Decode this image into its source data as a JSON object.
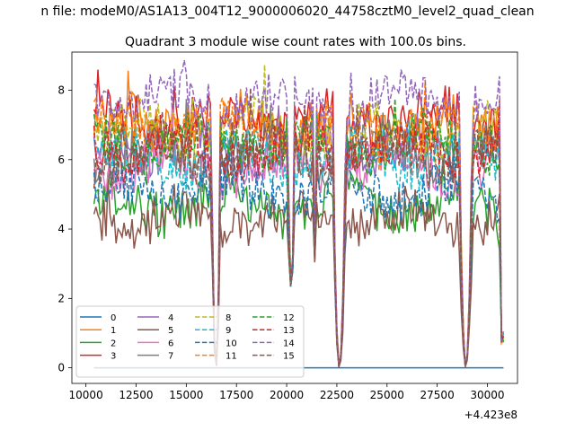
{
  "chart_data": {
    "type": "line",
    "suptitle": "n file: modeM0/AS1A13_004T12_9000006020_44758cztM0_level2_quad_clean",
    "title": "Quadrant 3 module wise count rates with 100.0s bins.",
    "xlabel": "",
    "ylabel": "",
    "offset_label": "+4.423e8",
    "xlim": [
      9300,
      31500
    ],
    "ylim": [
      -0.45,
      9.1
    ],
    "xticks": [
      10000,
      12500,
      15000,
      17500,
      20000,
      22500,
      25000,
      27500,
      30000
    ],
    "xtick_labels": [
      "10000",
      "12500",
      "15000",
      "17500",
      "20000",
      "22500",
      "25000",
      "27500",
      "30000"
    ],
    "yticks": [
      0,
      2,
      4,
      6,
      8
    ],
    "ytick_labels": [
      "0",
      "2",
      "4",
      "6",
      "8"
    ],
    "x_range": [
      10400,
      30850
    ],
    "bin_seconds": 100,
    "gaps": [
      {
        "start": 16250,
        "end": 16700,
        "floor": 0.0
      },
      {
        "start": 20050,
        "end": 20400,
        "floor": 2.3
      },
      {
        "start": 21350,
        "end": 21500,
        "floor": 2.9
      },
      {
        "start": 22300,
        "end": 22950,
        "floor": 0.0
      },
      {
        "start": 28600,
        "end": 29250,
        "floor": 0.0
      }
    ],
    "series": [
      {
        "name": "0",
        "color": "#1f77b4",
        "style": "solid",
        "level": 0.0
      },
      {
        "name": "1",
        "color": "#ff7f0e",
        "style": "solid",
        "level": 7.0
      },
      {
        "name": "2",
        "color": "#2ca02c",
        "style": "solid",
        "level": 4.7
      },
      {
        "name": "3",
        "color": "#d62728",
        "style": "solid",
        "level": 7.2
      },
      {
        "name": "4",
        "color": "#9467bd",
        "style": "solid",
        "level": 6.4
      },
      {
        "name": "5",
        "color": "#8c564b",
        "style": "solid",
        "level": 4.3
      },
      {
        "name": "6",
        "color": "#e377c2",
        "style": "solid",
        "level": 5.8
      },
      {
        "name": "7",
        "color": "#7f7f7f",
        "style": "solid",
        "level": 6.2
      },
      {
        "name": "8",
        "color": "#bcbd22",
        "style": "dashed",
        "level": 6.8
      },
      {
        "name": "9",
        "color": "#17becf",
        "style": "dashed",
        "level": 6.0
      },
      {
        "name": "10",
        "color": "#1f77b4",
        "style": "dashed",
        "level": 5.1
      },
      {
        "name": "11",
        "color": "#ff7f0e",
        "style": "dashed",
        "level": 6.9
      },
      {
        "name": "12",
        "color": "#2ca02c",
        "style": "dashed",
        "level": 6.5
      },
      {
        "name": "13",
        "color": "#d62728",
        "style": "dashed",
        "level": 6.3
      },
      {
        "name": "14",
        "color": "#9467bd",
        "style": "dashed",
        "level": 7.7
      },
      {
        "name": "15",
        "color": "#8c564b",
        "style": "dashed",
        "level": 6.1
      }
    ],
    "legend_position": "lower-left",
    "legend_columns": 4
  }
}
